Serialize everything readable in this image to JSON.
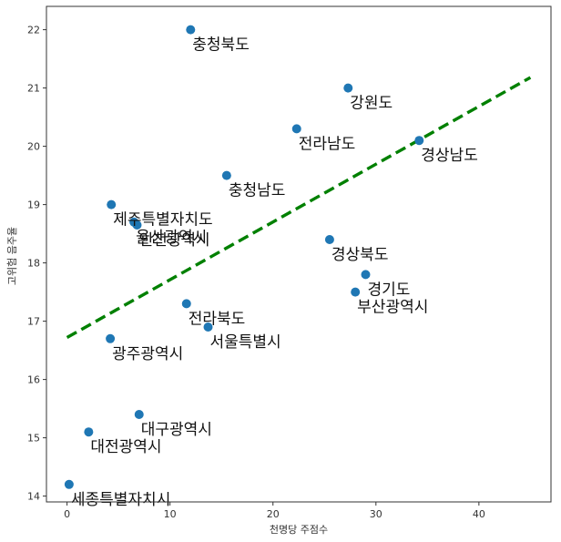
{
  "chart_data": {
    "type": "scatter",
    "title": "",
    "xlabel": "천명당 주점수",
    "ylabel": "고위험 음주율",
    "xlim": [
      -2,
      47
    ],
    "ylim": [
      13.9,
      22.4
    ],
    "xticks": [
      0,
      10,
      20,
      30,
      40
    ],
    "yticks": [
      14,
      15,
      16,
      17,
      18,
      19,
      20,
      21,
      22
    ],
    "grid": false,
    "point_color": "#1f77b4",
    "trendline": {
      "style": "dashed",
      "color": "#008000",
      "x": [
        0,
        45
      ],
      "y": [
        16.72,
        21.18
      ]
    },
    "points": [
      {
        "label": "충청북도",
        "x": 12.0,
        "y": 22.0
      },
      {
        "label": "강원도",
        "x": 27.3,
        "y": 21.0
      },
      {
        "label": "전라남도",
        "x": 22.3,
        "y": 20.3
      },
      {
        "label": "경상남도",
        "x": 34.2,
        "y": 20.1
      },
      {
        "label": "충청남도",
        "x": 15.5,
        "y": 19.5
      },
      {
        "label": "제주특별자치도",
        "x": 4.3,
        "y": 19.0
      },
      {
        "label": "울산광역시",
        "x": 6.5,
        "y": 18.7
      },
      {
        "label": "인천광역시",
        "x": 6.8,
        "y": 18.65
      },
      {
        "label": "경상북도",
        "x": 25.5,
        "y": 18.4
      },
      {
        "label": "경기도",
        "x": 29.0,
        "y": 17.8
      },
      {
        "label": "부산광역시",
        "x": 28.0,
        "y": 17.5
      },
      {
        "label": "전라북도",
        "x": 11.6,
        "y": 17.3
      },
      {
        "label": "서울특별시",
        "x": 13.7,
        "y": 16.9
      },
      {
        "label": "광주광역시",
        "x": 4.2,
        "y": 16.7
      },
      {
        "label": "대구광역시",
        "x": 7.0,
        "y": 15.4
      },
      {
        "label": "대전광역시",
        "x": 2.1,
        "y": 15.1
      },
      {
        "label": "세종특별자치시",
        "x": 0.2,
        "y": 14.2
      }
    ]
  }
}
